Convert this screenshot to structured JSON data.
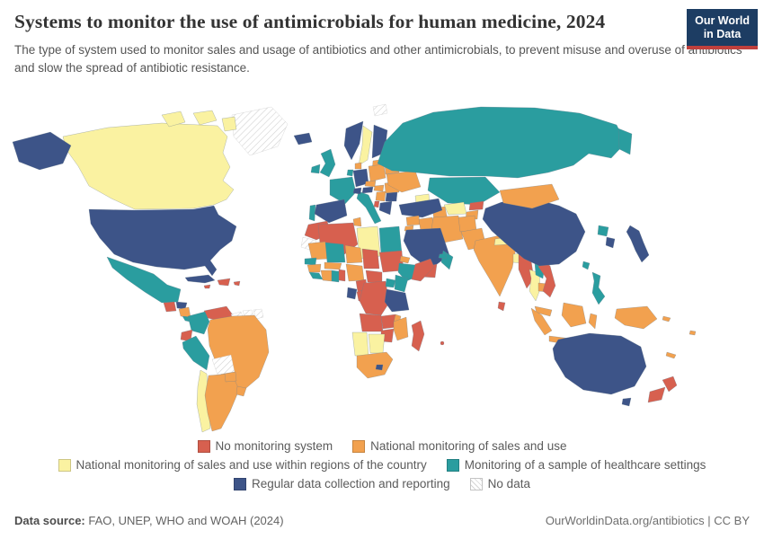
{
  "header": {
    "title": "Systems to monitor the use of antimicrobials for human medicine, 2024",
    "subtitle": "The type of system used to monitor sales and usage of antibiotics and other antimicrobials, to prevent misuse and overuse of antibiotics and slow the spread of antibiotic resistance.",
    "logo": {
      "line1": "Our World",
      "line2": "in Data"
    }
  },
  "legend": {
    "items": [
      {
        "key": "none",
        "label": "No monitoring system",
        "color": "#d7604f"
      },
      {
        "key": "national",
        "label": "National monitoring of sales and use",
        "color": "#f2a14f"
      },
      {
        "key": "regional",
        "label": "National monitoring of sales and use within regions of the country",
        "color": "#faf2a1"
      },
      {
        "key": "sample",
        "label": "Monitoring of a sample of healthcare settings",
        "color": "#2a9d9f"
      },
      {
        "key": "regular",
        "label": "Regular data collection and reporting",
        "color": "#3d5488"
      },
      {
        "key": "nodata",
        "label": "No data",
        "color": "hatch"
      }
    ]
  },
  "footer": {
    "source_label": "Data source:",
    "source_text": " FAO, UNEP, WHO and WOAH (2024)",
    "credit": "OurWorldinData.org/antibiotics | CC BY"
  },
  "chart_data": {
    "type": "choropleth",
    "title": "Systems to monitor the use of antimicrobials for human medicine, 2024",
    "categories": [
      "No monitoring system",
      "National monitoring of sales and use",
      "National monitoring of sales and use within regions of the country",
      "Monitoring of a sample of healthcare settings",
      "Regular data collection and reporting",
      "No data"
    ],
    "legend_position": "bottom",
    "countries": {
      "Canada": "regional",
      "United States": "regular",
      "Greenland": "nodata",
      "Svalbard": "nodata",
      "Mexico": "sample",
      "Guatemala": "none",
      "Honduras": "regular",
      "Nicaragua": "national",
      "Costa Rica": "sample",
      "Panama": "sample",
      "Cuba": "regular",
      "Jamaica": "none",
      "Haiti": "none",
      "Puerto Rico": "none",
      "Venezuela": "none",
      "Guyana": "nodata",
      "Suriname": "nodata",
      "French Guiana": "nodata",
      "Colombia": "sample",
      "Ecuador": "none",
      "Peru": "sample",
      "Brazil": "national",
      "Bolivia": "nodata",
      "Chile": "regional",
      "Argentina": "national",
      "Paraguay": "national",
      "Uruguay": "national",
      "Iceland": "regular",
      "United Kingdom": "sample",
      "Ireland": "sample",
      "Norway": "regular",
      "Sweden": "regional",
      "Finland": "regular",
      "Lithuania": "national",
      "Denmark": "national",
      "Germany": "regular",
      "Netherlands": "sample",
      "France": "sample",
      "Portugal": "sample",
      "Spain": "regular",
      "Italy": "sample",
      "Switzerland": "regular",
      "Austria": "regular",
      "Czechia": "national",
      "Poland": "national",
      "Hungary": "national",
      "Romania": "national",
      "Serbia": "national",
      "Bulgaria": "regular",
      "Greece": "regular",
      "Albania": "none",
      "Ukraine": "national",
      "Belarus": "national",
      "Russia": "sample",
      "Kazakhstan": "sample",
      "Uzbekistan": "regional",
      "Turkmenistan": "national",
      "Kyrgyzstan": "none",
      "Tajikistan": "national",
      "Azerbaijan": "regional",
      "Turkey": "regular",
      "Syria": "national",
      "Jordan": "national",
      "Iraq": "national",
      "Iran": "national",
      "Afghanistan": "national",
      "Pakistan": "national",
      "Saudi Arabia": "regular",
      "Yemen": "none",
      "Oman": "sample",
      "United Arab Emirates": "sample",
      "India": "national",
      "Nepal": "regional",
      "Bangladesh": "regional",
      "Sri Lanka": "none",
      "Myanmar": "none",
      "Thailand": "regional",
      "Laos": "sample",
      "Cambodia": "national",
      "Vietnam": "none",
      "China": "regular",
      "Mongolia": "national",
      "North Korea": "sample",
      "South Korea": "regular",
      "Japan": "regular",
      "Taiwan": "sample",
      "Philippines": "sample",
      "Malaysia": "national",
      "Indonesia": "national",
      "Papua New Guinea": "national",
      "Solomon Islands": "national",
      "Fiji": "national",
      "New Caledonia": "national",
      "Australia": "regular",
      "New Zealand": "none",
      "Morocco": "none",
      "Western Sahara": "nodata",
      "Algeria": "none",
      "Tunisia": "national",
      "Libya": "regional",
      "Egypt": "sample",
      "Mauritania": "national",
      "Mali": "sample",
      "Niger": "national",
      "Chad": "none",
      "Sudan": "none",
      "Eritrea": "national",
      "Ethiopia": "sample",
      "Somalia": "none",
      "Senegal": "sample",
      "Guinea": "national",
      "Sierra Leone": "sample",
      "Cote d'Ivoire": "national",
      "Ghana": "sample",
      "Benin": "none",
      "Burkina Faso": "national",
      "Nigeria": "national",
      "Cameroon": "none",
      "Central African Republic": "none",
      "Gabon": "regular",
      "Congo": "none",
      "DR Congo": "none",
      "Uganda": "sample",
      "Kenya": "sample",
      "Tanzania": "regular",
      "Angola": "none",
      "Zambia": "none",
      "Malawi": "national",
      "Mozambique": "national",
      "Zimbabwe": "none",
      "Namibia": "regional",
      "Botswana": "regional",
      "South Africa": "national",
      "Lesotho": "regular",
      "Madagascar": "none",
      "Mauritius": "none"
    }
  }
}
